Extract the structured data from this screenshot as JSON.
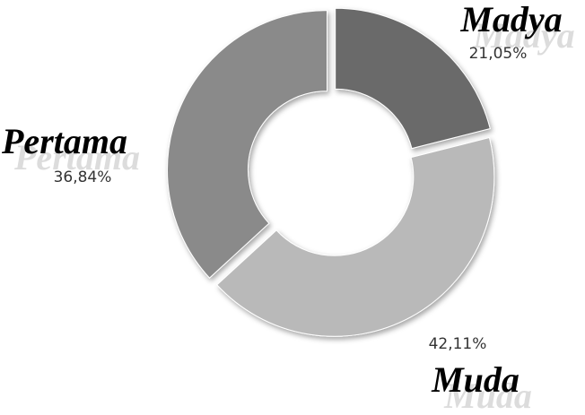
{
  "chart_data": {
    "type": "donut",
    "categories": [
      "Madya",
      "Muda",
      "Pertama"
    ],
    "values": [
      21.05,
      42.11,
      36.84
    ],
    "value_labels": [
      "21,05%",
      "42,11%",
      "36,84%"
    ],
    "colors": [
      "#6b6b6b",
      "#b9b9b9",
      "#8a8a8a"
    ]
  }
}
